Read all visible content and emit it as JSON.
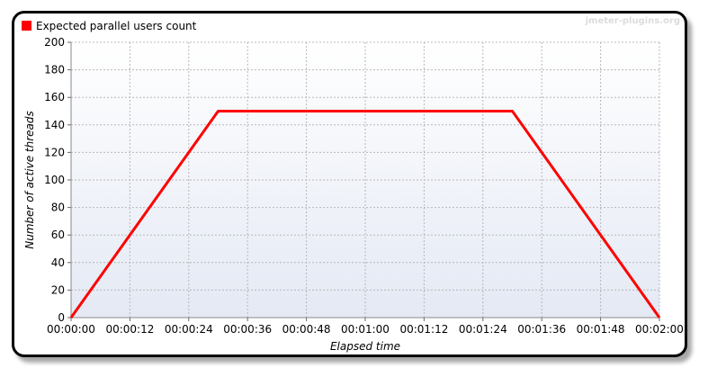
{
  "watermark": "jmeter-plugins.org",
  "colors": {
    "series": "#ff0000",
    "grid": "#b8b8b8",
    "plot_bg_top": "#ffffff",
    "plot_bg_bottom": "#e4e9f4"
  },
  "chart_data": {
    "type": "line",
    "title": "",
    "xlabel": "Elapsed time",
    "ylabel": "Number of active threads",
    "xlim": [
      0,
      120
    ],
    "ylim": [
      0,
      200
    ],
    "x_ticks": [
      "00:00:00",
      "00:00:12",
      "00:00:24",
      "00:00:36",
      "00:00:48",
      "00:01:00",
      "00:01:12",
      "00:01:24",
      "00:01:36",
      "00:01:48",
      "00:02:00"
    ],
    "y_ticks": [
      "0",
      "20",
      "40",
      "60",
      "80",
      "100",
      "120",
      "140",
      "160",
      "180",
      "200"
    ],
    "grid": true,
    "legend_position": "top-left",
    "series": [
      {
        "name": "Expected parallel users count",
        "color": "#ff0000",
        "points": [
          {
            "x": "00:00:00",
            "y": 0
          },
          {
            "x": "00:00:30",
            "y": 150
          },
          {
            "x": "00:01:30",
            "y": 150
          },
          {
            "x": "00:02:00",
            "y": 0
          }
        ]
      }
    ]
  }
}
